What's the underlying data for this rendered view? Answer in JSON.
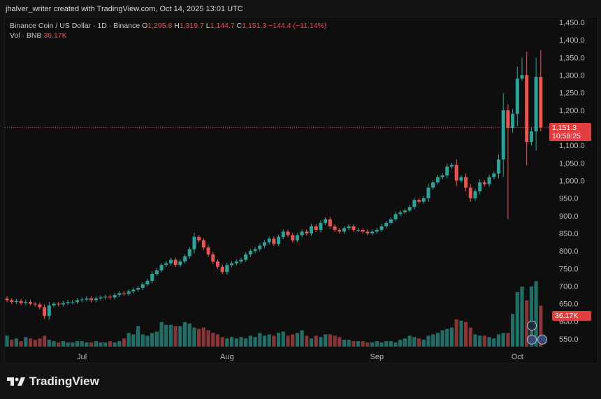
{
  "header": {
    "credit": "jhalver_writer created with TradingView.com, Oct 14, 2025 13:01 UTC"
  },
  "legend": {
    "symbol": "Binance Coin / US Dollar · 1D · Binance",
    "o_label": "O",
    "o_value": "1,295.8",
    "h_label": "H",
    "h_value": "1,319.7",
    "l_label": "L",
    "l_value": "1,144.7",
    "c_label": "C",
    "c_value": "1,151.3",
    "change": "−144.4 (−11.14%)",
    "vol_label": "Vol · BNB",
    "vol_value": "36.17K"
  },
  "price_tag": {
    "price": "1,151.3",
    "countdown": "10:58:25"
  },
  "volume_tag": "36.17K",
  "brand": "TradingView",
  "colors": {
    "up": "#26a69a",
    "down": "#ef5350",
    "background": "#0e0e0e",
    "tag": "#e0403f"
  },
  "chart_data": {
    "type": "candlestick",
    "title": "Binance Coin / US Dollar · 1D · Binance",
    "ylim": [
      500,
      1460
    ],
    "y_ticks": [
      "1,450.0",
      "1,400.0",
      "1,350.0",
      "1,300.0",
      "1,250.0",
      "1,200.0",
      "1,150.0",
      "1,100.0",
      "1,050.0",
      "1,000.0",
      "950.0",
      "900.0",
      "850.0",
      "800.0",
      "750.0",
      "700.0",
      "650.0",
      "600.0",
      "550.0"
    ],
    "x_tick_labels": [
      "Jul",
      "Aug",
      "Sep",
      "Oct"
    ],
    "x_tick_index": [
      16,
      47,
      79,
      109
    ],
    "last_price": 1151.3,
    "close": [
      660,
      655,
      658,
      652,
      655,
      650,
      648,
      640,
      615,
      645,
      650,
      648,
      652,
      655,
      655,
      660,
      662,
      665,
      660,
      665,
      668,
      670,
      668,
      675,
      680,
      678,
      685,
      690,
      695,
      705,
      715,
      735,
      745,
      760,
      765,
      775,
      760,
      770,
      785,
      805,
      840,
      830,
      810,
      790,
      770,
      755,
      740,
      760,
      765,
      770,
      775,
      790,
      800,
      805,
      815,
      825,
      835,
      820,
      840,
      855,
      845,
      830,
      845,
      855,
      850,
      870,
      860,
      880,
      890,
      870,
      860,
      855,
      865,
      870,
      860,
      860,
      855,
      850,
      855,
      860,
      870,
      880,
      890,
      905,
      910,
      915,
      925,
      945,
      940,
      950,
      980,
      995,
      1010,
      1015,
      1040,
      1045,
      1000,
      1010,
      980,
      950,
      970,
      995,
      990,
      1010,
      1020,
      1060,
      1200,
      1150,
      1190,
      1290,
      1300,
      1110,
      1140,
      1295,
      1151.3
    ],
    "volume": [
      8,
      5,
      6,
      4,
      7,
      6,
      5,
      6,
      8,
      5,
      4,
      3,
      4,
      3,
      3,
      4,
      4,
      3,
      3,
      4,
      3,
      3,
      4,
      3,
      4,
      6,
      10,
      9,
      15,
      9,
      8,
      10,
      11,
      18,
      16,
      16,
      15,
      15,
      18,
      17,
      14,
      13,
      14,
      12,
      10,
      9,
      7,
      6,
      7,
      6,
      7,
      6,
      8,
      7,
      10,
      8,
      9,
      8,
      10,
      11,
      8,
      9,
      10,
      12,
      8,
      6,
      8,
      7,
      9,
      9,
      8,
      7,
      5,
      5,
      4,
      4,
      4,
      3,
      3,
      4,
      3,
      4,
      4,
      3,
      5,
      6,
      8,
      7,
      6,
      5,
      8,
      9,
      10,
      12,
      13,
      14,
      20,
      19,
      18,
      14,
      9,
      8,
      8,
      7,
      6,
      9,
      10,
      10,
      24,
      40,
      44,
      34,
      44,
      48,
      30
    ]
  }
}
